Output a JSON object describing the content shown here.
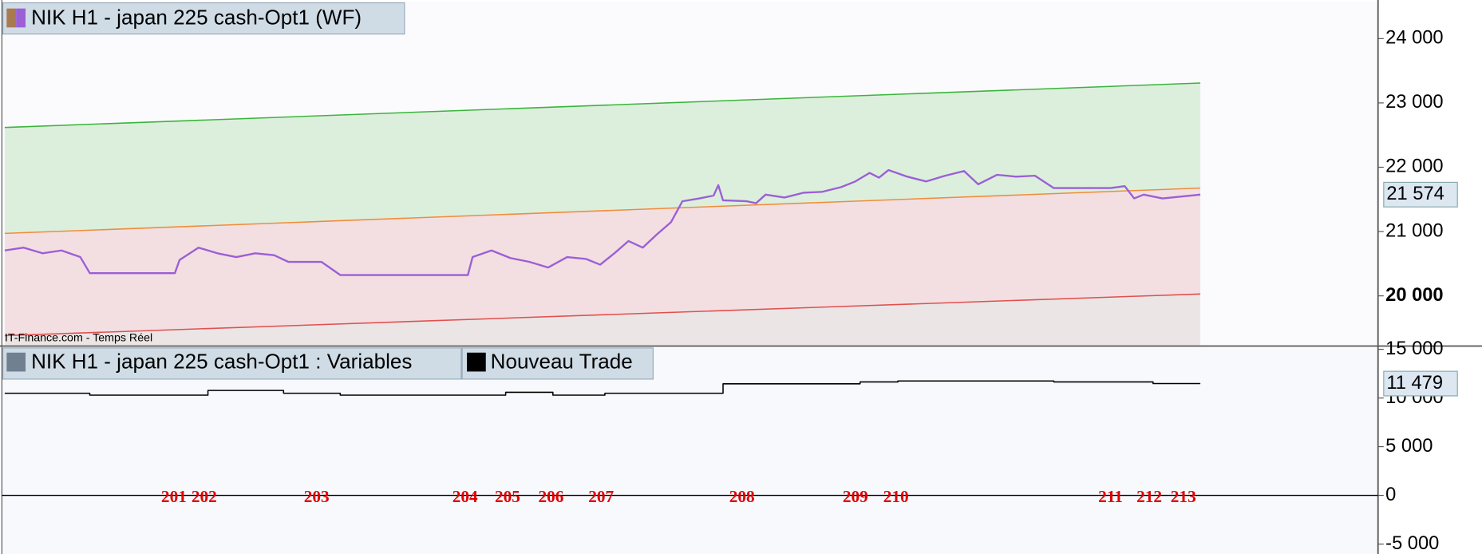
{
  "chart_data": [
    {
      "type": "line",
      "title": "NIK H1 - japan 225 cash-Opt1 (WF)",
      "annotation": "IT-Finance.com - Temps Réel",
      "xlim": [
        -5,
        1453
      ],
      "ylim": [
        19235,
        24600
      ],
      "yticks": [
        {
          "value": 20000,
          "label": "20 000"
        },
        {
          "value": 21000,
          "label": "21 000"
        },
        {
          "value": 22000,
          "label": "22 000"
        },
        {
          "value": 23000,
          "label": "23 000"
        },
        {
          "value": 24000,
          "label": "24 000"
        }
      ],
      "bold_tick": 20000,
      "last_label": {
        "value": 21574,
        "label": "21 574"
      },
      "channels": [
        {
          "color": "#3cb43c",
          "fill": "#dcefdc",
          "x": [
            0,
            1265
          ],
          "values": [
            22618,
            23309
          ]
        },
        {
          "color": "#f08c3c",
          "fill": "#f3dfe1",
          "x": [
            0,
            1265
          ],
          "values": [
            20971,
            21676
          ]
        },
        {
          "color": "#e05050",
          "fill": "#ebe5e5",
          "x": [
            0,
            1265
          ],
          "values": [
            19382,
            20029
          ]
        }
      ],
      "series": [
        {
          "color": "#9b5fd6",
          "x": [
            0,
            20,
            40,
            60,
            80,
            90,
            180,
            185,
            205,
            225,
            245,
            265,
            285,
            300,
            335,
            355,
            490,
            495,
            515,
            535,
            555,
            575,
            595,
            615,
            630,
            645,
            660,
            675,
            690,
            705,
            717,
            735,
            750,
            755,
            760,
            785,
            795,
            805,
            825,
            845,
            865,
            885,
            900,
            915,
            925,
            935,
            955,
            975,
            995,
            1015,
            1030,
            1050,
            1070,
            1090,
            1110,
            1170,
            1185,
            1195,
            1205,
            1225,
            1245,
            1265
          ],
          "values": [
            20706,
            20750,
            20662,
            20706,
            20603,
            20353,
            20353,
            20559,
            20750,
            20662,
            20603,
            20662,
            20632,
            20529,
            20529,
            20324,
            20324,
            20603,
            20706,
            20588,
            20529,
            20441,
            20603,
            20574,
            20485,
            20662,
            20853,
            20750,
            20956,
            21147,
            21471,
            21515,
            21559,
            21721,
            21485,
            21471,
            21441,
            21574,
            21529,
            21603,
            21618,
            21691,
            21779,
            21912,
            21838,
            21956,
            21853,
            21779,
            21868,
            21941,
            21735,
            21882,
            21853,
            21868,
            21676,
            21676,
            21706,
            21515,
            21574,
            21515,
            21544,
            21574
          ]
        }
      ]
    },
    {
      "type": "line",
      "title": "NIK H1 - japan 225 cash-Opt1 : Variables",
      "xlim": [
        -5,
        1453
      ],
      "ylim": [
        -6020,
        15240
      ],
      "yticks": [
        {
          "value": -5000,
          "label": "-5 000"
        },
        0,
        {
          "value": 5000,
          "label": "5 000"
        },
        {
          "value": 10000,
          "label": "10 000"
        },
        {
          "value": 15000,
          "label": "15 000"
        }
      ],
      "last_label": {
        "value": 11479,
        "label": "11 479"
      },
      "series": [
        {
          "name": "Nouveau Trade",
          "color": "#000000",
          "x": [
            0,
            90,
            90,
            215,
            215,
            295,
            295,
            355,
            355,
            530,
            530,
            580,
            580,
            635,
            635,
            760,
            760,
            905,
            905,
            945,
            945,
            1110,
            1110,
            1215,
            1215,
            1265
          ],
          "values": [
            10485,
            10485,
            10291,
            10291,
            10777,
            10777,
            10485,
            10485,
            10291,
            10291,
            10583,
            10583,
            10291,
            10291,
            10485,
            10485,
            11456,
            11456,
            11650,
            11650,
            11748,
            11748,
            11650,
            11650,
            11479,
            11479
          ]
        }
      ],
      "trades": {
        "labels": [
          "201",
          "202",
          "203",
          "204",
          "205",
          "206",
          "207",
          "208",
          "209",
          "210",
          "211",
          "212",
          "213"
        ],
        "x": [
          179,
          211,
          330,
          487,
          532,
          578,
          631,
          780,
          900,
          943,
          1170,
          1211,
          1247
        ]
      }
    }
  ]
}
